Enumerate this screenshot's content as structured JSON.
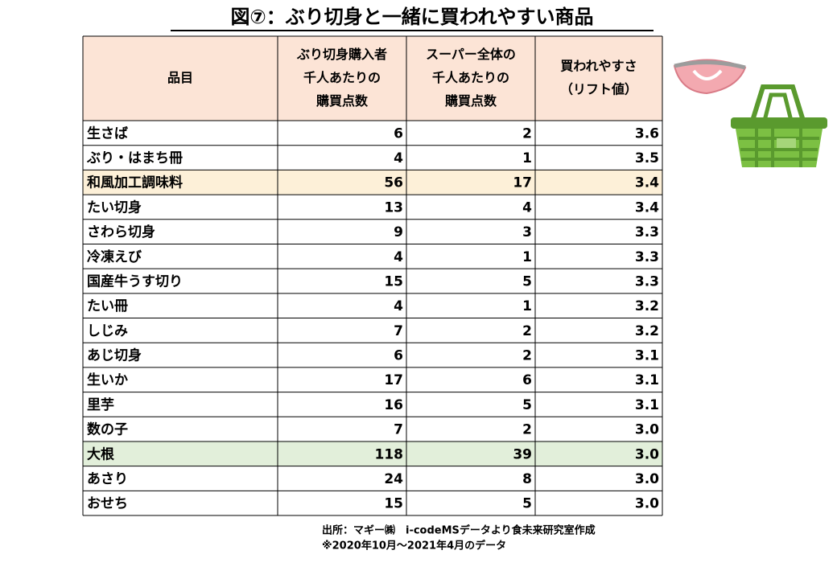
{
  "title": "図⑦：ぶり切身と一緒に買われやすい商品",
  "table": {
    "header": [
      [
        "品目"
      ],
      [
        "ぶり切身購入者",
        "千人あたりの",
        "購買点数"
      ],
      [
        "スーパー全体の",
        "千人あたりの",
        "購買点数"
      ],
      [
        "買われやすさ",
        "（リフト値）"
      ]
    ],
    "rows": [
      [
        "生さば",
        "6",
        "2",
        "3.6"
      ],
      [
        "ぶり・はまち冊",
        "4",
        "1",
        "3.5"
      ],
      [
        "和風加工調味料",
        "56",
        "17",
        "3.4"
      ],
      [
        "たい切身",
        "13",
        "4",
        "3.4"
      ],
      [
        "さわら切身",
        "9",
        "3",
        "3.3"
      ],
      [
        "冷凍えび",
        "4",
        "1",
        "3.3"
      ],
      [
        "国産牛うす切り",
        "15",
        "5",
        "3.3"
      ],
      [
        "たい冊",
        "4",
        "1",
        "3.2"
      ],
      [
        "しじみ",
        "7",
        "2",
        "3.2"
      ],
      [
        "あじ切身",
        "6",
        "2",
        "3.1"
      ],
      [
        "生いか",
        "17",
        "6",
        "3.1"
      ],
      [
        "里芋",
        "16",
        "5",
        "3.1"
      ],
      [
        "数の子",
        "7",
        "2",
        "3.0"
      ],
      [
        "大根",
        "118",
        "39",
        "3.0"
      ],
      [
        "あさり",
        "24",
        "8",
        "3.0"
      ],
      [
        "おせち",
        "15",
        "5",
        "3.0"
      ]
    ]
  },
  "notes": [
    "出所：マギー㈱　i-codeMSデータより食未来研究室作成",
    "※2020年10月～2021年4月のデータ"
  ]
}
